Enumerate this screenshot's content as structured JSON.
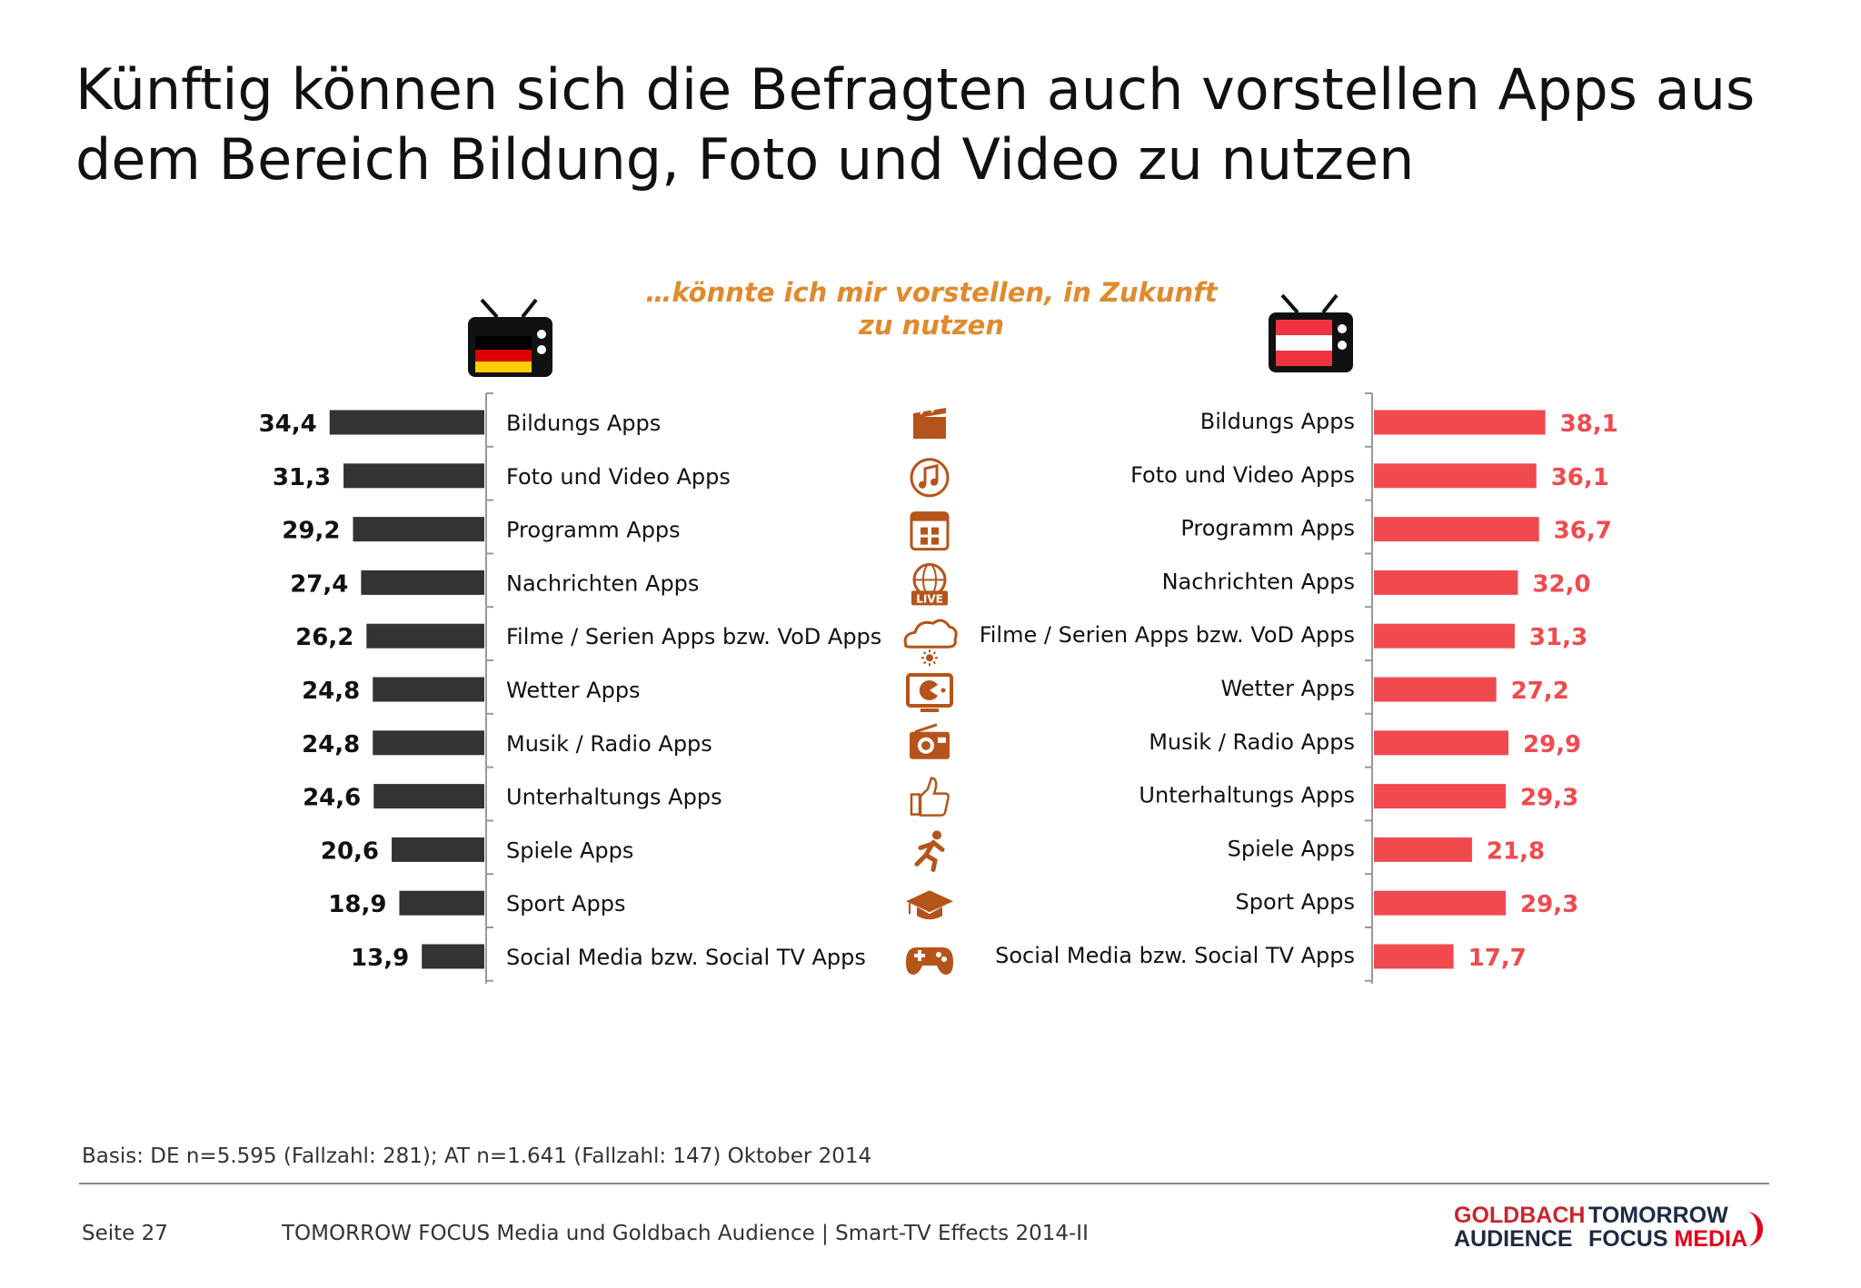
{
  "title": "Künftig können sich die Befragten auch vorstellen Apps aus dem Bereich Bildung, Foto und Video zu nutzen",
  "chart_data": {
    "type": "bar",
    "title": "",
    "subtitle": "…könnte ich mir vorstellen, in Zukunft zu nutzen",
    "categories": [
      "Bildungs Apps",
      "Foto und Video Apps",
      "Programm Apps",
      "Nachrichten Apps",
      "Filme / Serien Apps bzw. VoD Apps",
      "Wetter Apps",
      "Musik / Radio Apps",
      "Unterhaltungs Apps",
      "Spiele Apps",
      "Sport Apps",
      "Social Media bzw. Social TV Apps"
    ],
    "series": [
      {
        "values": [
          34.4,
          31.3,
          29.2,
          27.4,
          26.2,
          24.8,
          24.8,
          24.6,
          20.6,
          18.9,
          13.9
        ],
        "labels": [
          "34,4",
          "31,3",
          "29,2",
          "27,4",
          "26,2",
          "24,8",
          "24,8",
          "24,6",
          "20,6",
          "18,9",
          "13,9"
        ],
        "color": "#333333",
        "flag": "germany"
      },
      {
        "values": [
          38.1,
          36.1,
          36.7,
          32.0,
          31.3,
          27.2,
          29.9,
          29.3,
          21.8,
          29.3,
          17.7
        ],
        "labels": [
          "38,1",
          "36,1",
          "36,7",
          "32,0",
          "31,3",
          "27,2",
          "29,9",
          "29,3",
          "21,8",
          "29,3",
          "17,7"
        ],
        "color": "#F04A4E",
        "flag": "austria"
      }
    ],
    "icons": [
      "clapperboard-icon",
      "music-note-icon",
      "program-grid-icon",
      "live-globe-icon",
      "weather-cloud-sun-icon",
      "tv-pacman-icon",
      "radio-icon",
      "thumbs-up-icon",
      "running-person-icon",
      "graduation-cap-icon",
      "gamepad-icon"
    ],
    "xlim": [
      0,
      40
    ],
    "grid": false,
    "legend": "none"
  },
  "footer": {
    "basis": "Basis: DE n=5.595 (Fallzahl: 281); AT n=1.641 (Fallzahl: 147) Oktober 2014",
    "page": "Seite 27",
    "source": "TOMORROW FOCUS Media und Goldbach Audience | Smart-TV Effects 2014-II"
  },
  "logos": {
    "goldbach_line1": "GOLDBACH",
    "goldbach_line2": "AUDIENCE",
    "tomorrow_line1": "TOMORROW",
    "tomorrow_line2a": "FOCUS ",
    "tomorrow_line2b": "MEDIA"
  },
  "colors": {
    "accent_orange": "#E08A2C",
    "icon_brown": "#B5541A",
    "de_bar": "#333333",
    "at_bar": "#F04A4E"
  }
}
